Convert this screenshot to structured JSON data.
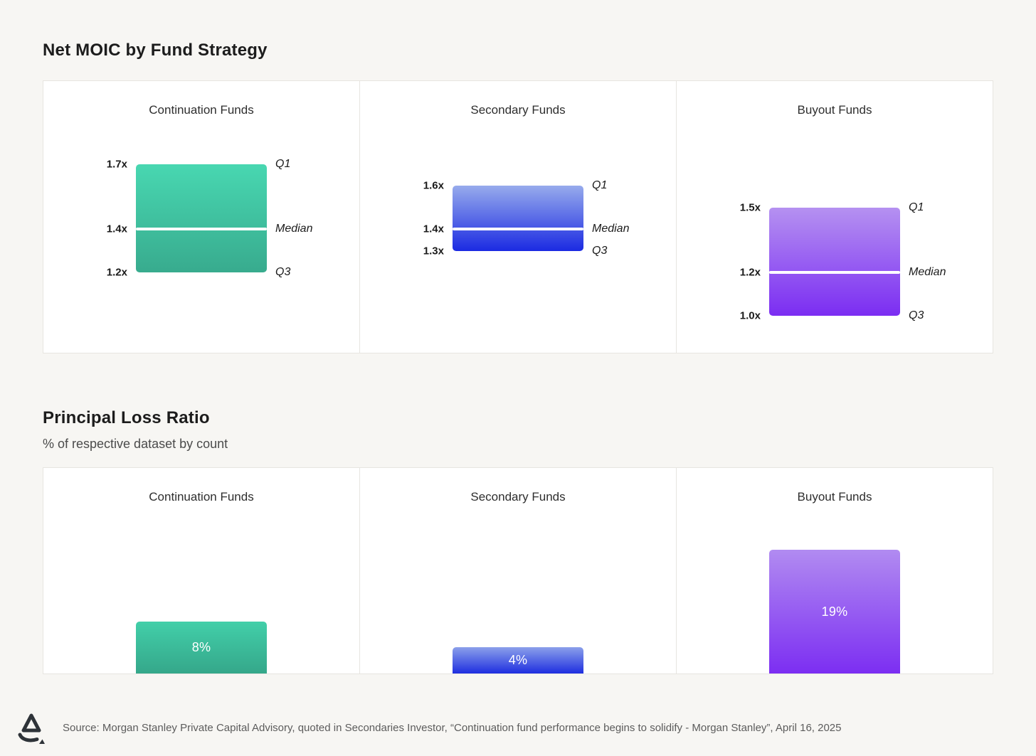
{
  "page": {
    "background": "#f7f6f3",
    "panel_background": "#ffffff",
    "panel_border": "#e7e5e0"
  },
  "chart_data": [
    {
      "type": "bar",
      "variant": "floating-quartile-range",
      "title": "Net MOIC by Fund Strategy",
      "unit": "x",
      "axis": {
        "min": 1.0,
        "max": 1.7,
        "gridlines": false
      },
      "quartile_labels": {
        "q1": "Q1",
        "median": "Median",
        "q3": "Q3"
      },
      "median_line_color": "#ffffff",
      "panels": [
        {
          "title": "Continuation Funds",
          "q1": 1.7,
          "median": 1.4,
          "q3": 1.2,
          "q1_label": "1.7x",
          "median_label": "1.4x",
          "q3_label": "1.2x",
          "gradient_top": "#48d7b1",
          "gradient_bottom": "#38ab8e"
        },
        {
          "title": "Secondary Funds",
          "q1": 1.6,
          "median": 1.4,
          "q3": 1.3,
          "q1_label": "1.6x",
          "median_label": "1.4x",
          "q3_label": "1.3x",
          "gradient_top": "#97abec",
          "gradient_bottom": "#1b2ae2"
        },
        {
          "title": "Buyout Funds",
          "q1": 1.5,
          "median": 1.2,
          "q3": 1.0,
          "q1_label": "1.5x",
          "median_label": "1.2x",
          "q3_label": "1.0x",
          "gradient_top": "#b591f1",
          "gradient_bottom": "#7b2df2"
        }
      ]
    },
    {
      "type": "bar",
      "title": "Principal Loss Ratio",
      "subtitle": "% of respective dataset by count",
      "categories": [
        "Continuation Funds",
        "Secondary Funds",
        "Buyout Funds"
      ],
      "values": [
        8,
        4,
        19
      ],
      "value_labels": [
        "8%",
        "4%",
        "19%"
      ],
      "ylim": [
        0,
        31.8
      ],
      "gradients": [
        {
          "top": "#42cfa9",
          "bottom": "#35a78a"
        },
        {
          "top": "#8ba0ea",
          "bottom": "#1e2ee0"
        },
        {
          "top": "#b18bf1",
          "bottom": "#7c2ef2"
        }
      ]
    }
  ],
  "footer": {
    "logo": "brand-a-logo",
    "source_text": "Source: Morgan Stanley Private Capital Advisory, quoted in Secondaries Investor, “Continuation fund performance begins to solidify - Morgan Stanley”, April 16, 2025"
  }
}
